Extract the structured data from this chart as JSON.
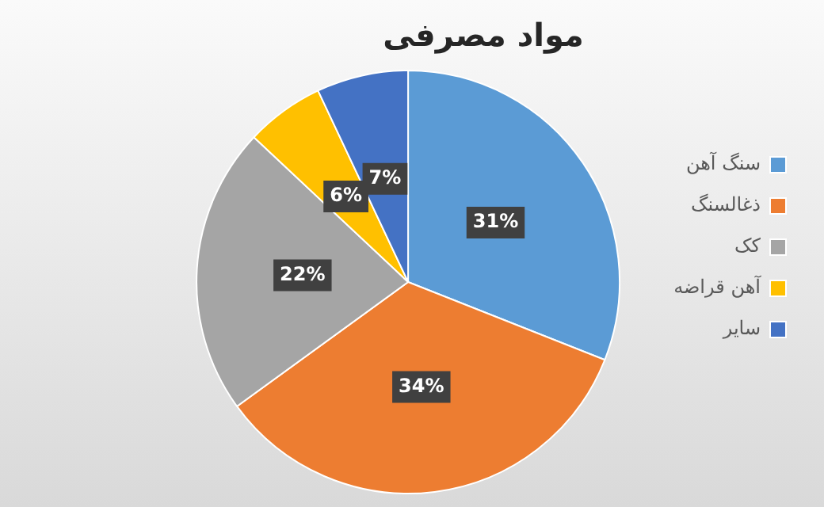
{
  "chart_data": {
    "type": "pie",
    "title": "مواد مصرفی",
    "categories": [
      "سنگ آهن",
      "ذغالسنگ",
      "کک",
      "آهن قراضه",
      "سایر"
    ],
    "values": [
      31,
      34,
      22,
      6,
      7
    ],
    "colors": [
      "#5b9bd5",
      "#ed7d31",
      "#a5a5a5",
      "#ffc000",
      "#4472c4"
    ],
    "value_labels": [
      "31%",
      "34%",
      "22%",
      "6%",
      "7%"
    ],
    "legend": "right"
  }
}
